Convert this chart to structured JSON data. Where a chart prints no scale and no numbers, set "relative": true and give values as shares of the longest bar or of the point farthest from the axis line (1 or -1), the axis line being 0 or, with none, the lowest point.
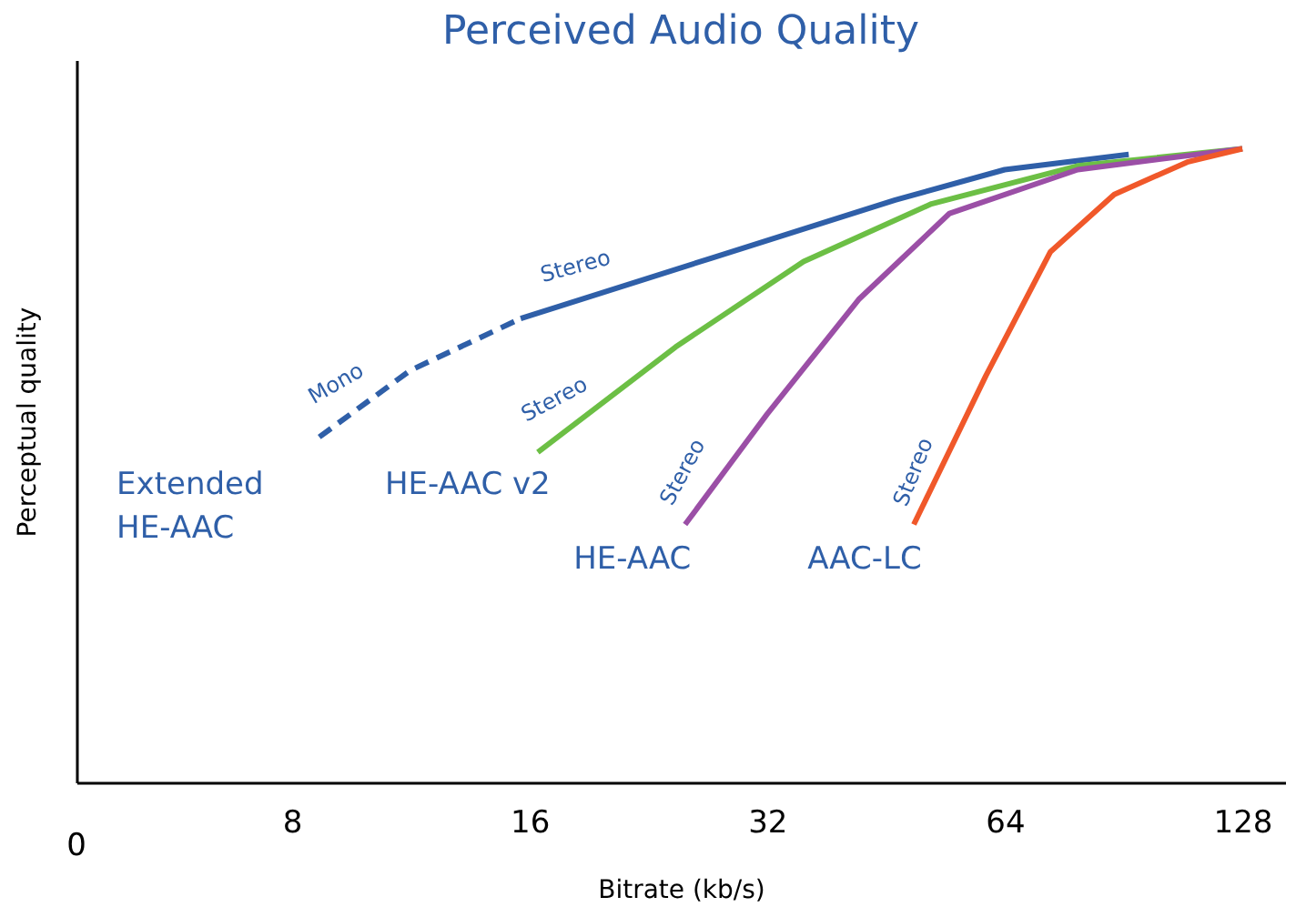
{
  "chart_data": {
    "type": "line",
    "title": "Perceived Audio Quality",
    "xlabel": "Bitrate (kb/s)",
    "ylabel": "Perceptual quality",
    "relative": true,
    "tick_labels": "x",
    "grid": false,
    "marker": "none",
    "log": "x",
    "xlim": [
      4.27,
      145
    ],
    "xticks": [
      8,
      16,
      32,
      64,
      128
    ],
    "series": [
      {
        "name": "Extended\nHE-AAC",
        "color": "#2f5fa8",
        "line_style": "dashed",
        "x": [
          8.67,
          11.3,
          15.6
        ],
        "values": [
          0.545,
          0.65,
          0.732
        ]
      },
      {
        "color": "#2f5fa8",
        "line_style": "solid",
        "x": [
          15.6,
          27.3,
          46.5,
          64,
          91.9
        ],
        "values": [
          0.732,
          0.828,
          0.919,
          0.967,
          0.991
        ]
      },
      {
        "name": "HE-AAC v2",
        "color": "#6cbf45",
        "line_style": "solid",
        "x": [
          16.4,
          24.5,
          35.6,
          51.7,
          79.2,
          128
        ],
        "values": [
          0.521,
          0.687,
          0.822,
          0.913,
          0.973,
          1.0
        ]
      },
      {
        "name": "HE-AAC",
        "color": "#9b4fa6",
        "line_style": "solid",
        "x": [
          25.2,
          32,
          41.8,
          54.5,
          79.2,
          128
        ],
        "values": [
          0.407,
          0.581,
          0.762,
          0.898,
          0.967,
          1.0
        ]
      },
      {
        "name": "AAC-LC",
        "color": "#f0582a",
        "line_style": "solid",
        "x": [
          49.1,
          60.6,
          73.1,
          88.1,
          109,
          128
        ],
        "values": [
          0.407,
          0.642,
          0.837,
          0.928,
          0.979,
          1.0
        ]
      }
    ],
    "annotations": [
      "Mono",
      "Stereo",
      "Stereo",
      "Stereo",
      "Stereo",
      "0"
    ]
  }
}
